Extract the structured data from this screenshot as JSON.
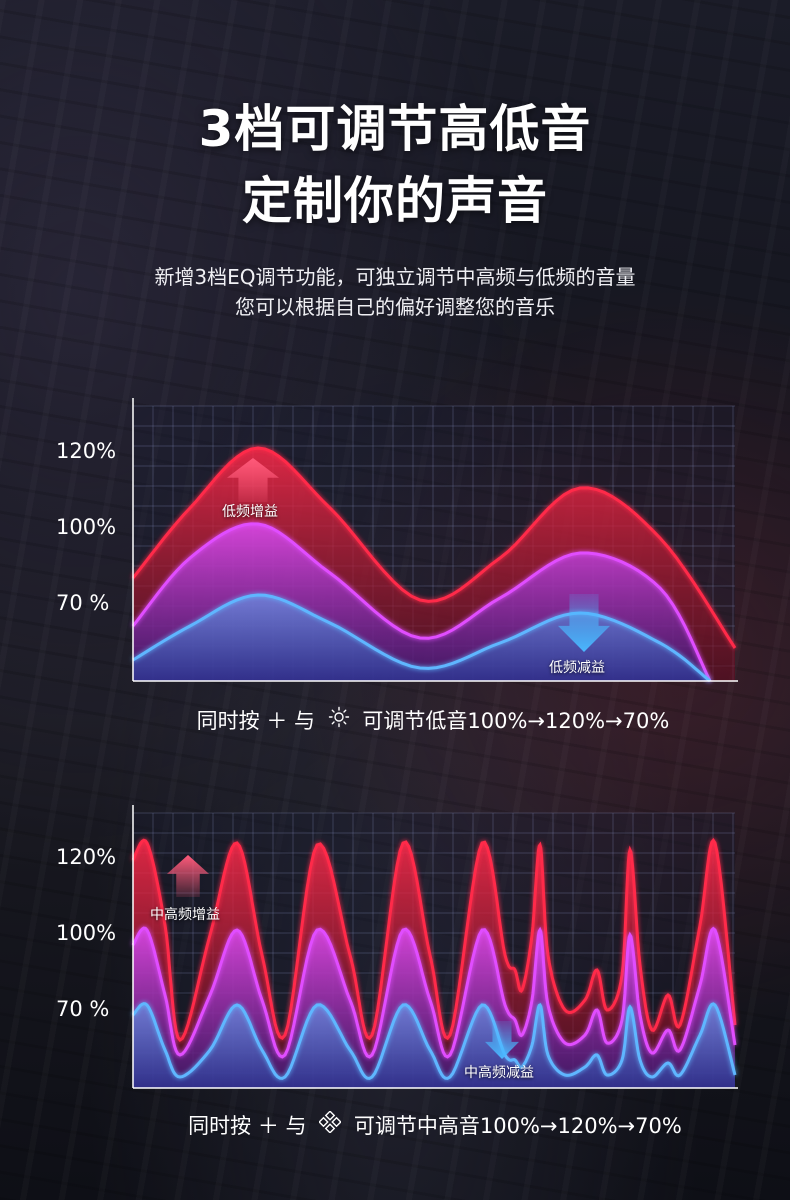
{
  "title_line1": "3档可调节高低音",
  "title_line2": "定制你的声音",
  "subtitle_line1": "新增3档EQ调节功能，可独立调节中高频与低频的音量",
  "subtitle_line2": "您可以根据自己的偏好调整您的音乐",
  "charts": [
    {
      "y_ticks": [
        "120%",
        "100%",
        "70 %"
      ],
      "gain_label": "低频增益",
      "cut_label": "低频减益",
      "caption_before": "同时按 ＋ 与",
      "caption_icon": "sun-brightness-icon",
      "caption_after": "可调节低音100%→120%→70%"
    },
    {
      "y_ticks": [
        "120%",
        "100%",
        "70 %"
      ],
      "gain_label": "中高频增益",
      "cut_label": "中高频减益",
      "caption_before": "同时按 ＋ 与",
      "caption_icon": "diamond-dots-icon",
      "caption_after": "可调节中高音100%→120%→70%"
    }
  ],
  "colors": {
    "red_wave": "#ff2a4a",
    "magenta_wave": "#e04dff",
    "blue_wave": "#5fb6ff",
    "arrow_up": "#ff5a7a",
    "arrow_down": "#4ab8ff"
  }
}
